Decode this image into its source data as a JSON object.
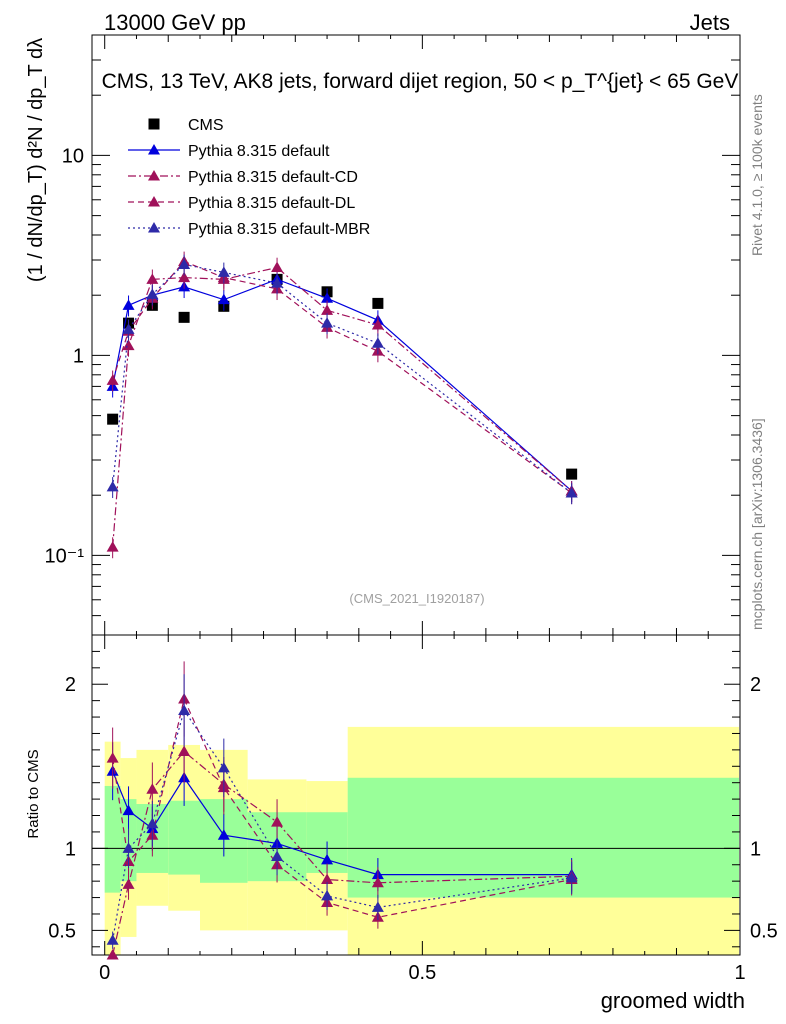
{
  "header": {
    "energy_label": "13000 GeV pp",
    "category_label": "Jets"
  },
  "side_labels": {
    "rivet": "Rivet 4.1.0, ≥ 100k events",
    "mcplots": "mcplots.cern.ch [arXiv:1306.3436]"
  },
  "watermark": "(CMS_2021_I1920187)",
  "colors": {
    "data": "#000000",
    "default": "#0000dd",
    "cd": "#a0115a",
    "dl": "#a0115a",
    "mbr": "#2e2aa8",
    "band_inner": "#99ff99",
    "band_outer": "#ffff99"
  },
  "chart_data": [
    {
      "type": "scatter",
      "panel": "main",
      "title": "CMS, 13 TeV, AK8 jets, forward dijet region, 50 < p_T^{jet} < 65 GeV",
      "xlabel": "groomed width",
      "ylabel": "(1 / dN/dp_T) d²N / dp_T dλ",
      "yscale": "log",
      "xlim": [
        -0.02,
        1.0
      ],
      "ylim": [
        0.04,
        40
      ],
      "x": [
        0.0125,
        0.0375,
        0.075,
        0.125,
        0.1875,
        0.2713,
        0.35,
        0.43,
        0.735
      ],
      "y_tick_labels": [
        "10⁻¹",
        "1",
        "10"
      ],
      "series": [
        {
          "name": "CMS",
          "key": "data",
          "style": "square",
          "values": [
            0.48,
            1.45,
            1.78,
            1.55,
            1.76,
            2.4,
            2.08,
            1.82,
            0.255
          ]
        },
        {
          "name": "Pythia 8.315 default",
          "key": "default",
          "style": "solid",
          "values": [
            0.7,
            1.78,
            2.0,
            2.2,
            1.9,
            2.4,
            1.93,
            1.5,
            0.21
          ]
        },
        {
          "name": "Pythia 8.315 default-CD",
          "key": "cd",
          "style": "dashdot",
          "values": [
            0.11,
            1.12,
            2.4,
            2.45,
            2.4,
            2.75,
            1.68,
            1.42,
            0.21
          ]
        },
        {
          "name": "Pythia 8.315 default-DL",
          "key": "dl",
          "style": "dashed",
          "values": [
            0.75,
            1.32,
            1.93,
            2.95,
            2.45,
            2.15,
            1.38,
            1.05,
            0.205
          ]
        },
        {
          "name": "Pythia 8.315 default-MBR",
          "key": "mbr",
          "style": "dotted",
          "values": [
            0.22,
            1.35,
            2.02,
            2.85,
            2.6,
            2.3,
            1.45,
            1.15,
            0.205
          ]
        }
      ]
    },
    {
      "type": "scatter",
      "panel": "ratio",
      "xlabel": "groomed width",
      "ylabel": "Ratio to CMS",
      "xlim": [
        -0.02,
        1.0
      ],
      "ylim": [
        0.35,
        2.3
      ],
      "x": [
        0.0125,
        0.0375,
        0.075,
        0.125,
        0.1875,
        0.2713,
        0.35,
        0.43,
        0.735
      ],
      "x_ticks": [
        0,
        0.5,
        1
      ],
      "y_ticks": [
        0.5,
        1,
        2
      ],
      "band_edges": [
        0,
        0.025,
        0.05,
        0.1,
        0.15,
        0.225,
        0.3175,
        0.3825,
        1.0
      ],
      "band_inner": [
        [
          0.73,
          1.38
        ],
        [
          0.8,
          1.3
        ],
        [
          0.85,
          1.27
        ],
        [
          0.84,
          1.29
        ],
        [
          0.79,
          1.3
        ],
        [
          0.8,
          1.22
        ],
        [
          0.85,
          1.22
        ],
        [
          0.7,
          1.43
        ]
      ],
      "band_outer": [
        [
          0.35,
          1.65
        ],
        [
          0.46,
          1.55
        ],
        [
          0.65,
          1.6
        ],
        [
          0.62,
          1.63
        ],
        [
          0.5,
          1.6
        ],
        [
          0.5,
          1.42
        ],
        [
          0.5,
          1.41
        ],
        [
          0.35,
          1.74
        ]
      ],
      "series": [
        {
          "name": "Pythia 8.315 default",
          "key": "default",
          "style": "solid",
          "values": [
            1.47,
            1.23,
            1.12,
            1.43,
            1.08,
            1.03,
            0.93,
            0.84,
            0.84
          ]
        },
        {
          "name": "Pythia 8.315 default-CD",
          "key": "cd",
          "style": "dashdot",
          "values": [
            0.33,
            0.78,
            1.36,
            1.59,
            1.39,
            1.16,
            0.81,
            0.79,
            0.83
          ]
        },
        {
          "name": "Pythia 8.315 default-DL",
          "key": "dl",
          "style": "dashed",
          "values": [
            1.55,
            0.92,
            1.08,
            1.91,
            1.37,
            0.9,
            0.67,
            0.58,
            0.81
          ]
        },
        {
          "name": "Pythia 8.315 default-MBR",
          "key": "mbr",
          "style": "dotted",
          "values": [
            0.44,
            1.0,
            1.15,
            1.84,
            1.49,
            0.95,
            0.71,
            0.64,
            0.82
          ]
        }
      ]
    }
  ]
}
